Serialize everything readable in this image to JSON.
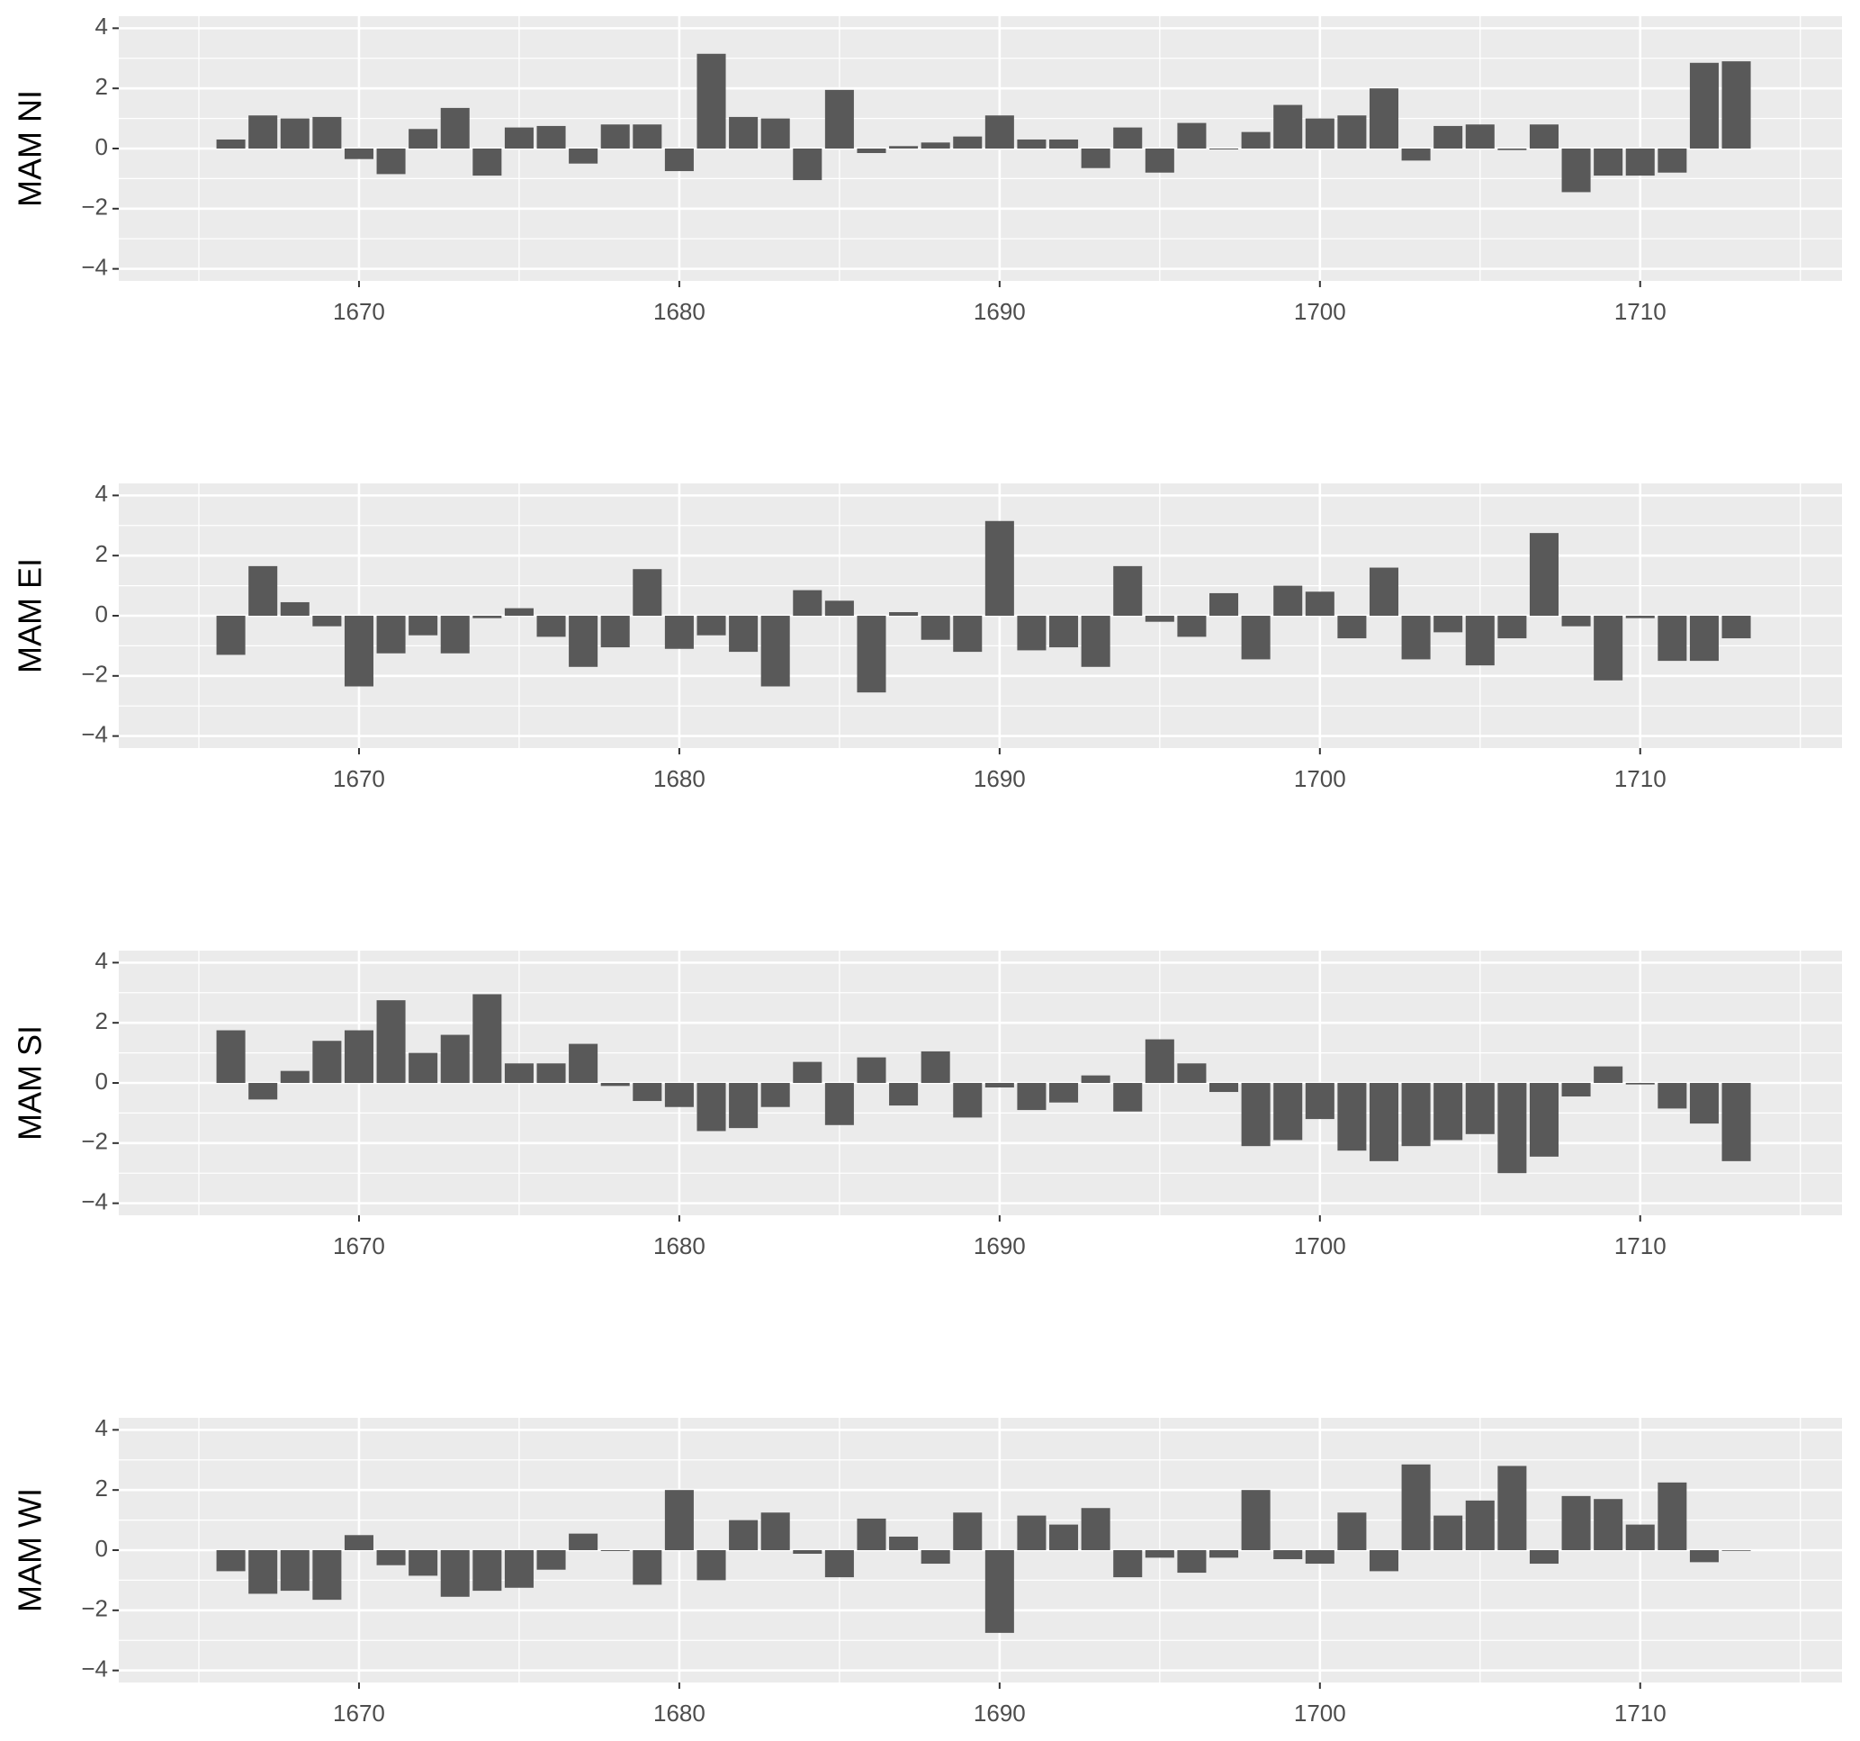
{
  "chart_data": [
    {
      "type": "bar",
      "ylabel": "MAM NI",
      "color": "#595959",
      "grid": true,
      "x": [
        1666,
        1667,
        1668,
        1669,
        1670,
        1671,
        1672,
        1673,
        1674,
        1675,
        1676,
        1677,
        1678,
        1679,
        1680,
        1681,
        1682,
        1683,
        1684,
        1685,
        1686,
        1687,
        1688,
        1689,
        1690,
        1691,
        1692,
        1693,
        1694,
        1695,
        1696,
        1697,
        1698,
        1699,
        1700,
        1701,
        1702,
        1703,
        1704,
        1705,
        1706,
        1707,
        1708,
        1709,
        1710,
        1711,
        1712,
        1713
      ],
      "values": [
        0.3,
        1.1,
        1.0,
        1.05,
        -0.35,
        -0.85,
        0.65,
        1.35,
        -0.9,
        0.7,
        0.75,
        -0.5,
        0.8,
        0.8,
        -0.75,
        3.15,
        1.05,
        1.0,
        -1.05,
        1.95,
        -0.15,
        0.08,
        0.2,
        0.4,
        1.1,
        0.3,
        0.3,
        -0.65,
        0.7,
        -0.8,
        0.85,
        -0.03,
        0.55,
        1.45,
        1.0,
        1.1,
        2.0,
        -0.4,
        0.75,
        0.8,
        -0.05,
        0.8,
        -1.45,
        -0.9,
        -0.9,
        -0.8,
        2.85,
        2.9
      ],
      "xlim": [
        1662.5,
        1716.3
      ],
      "ylim": [
        -4.4,
        4.4
      ],
      "xticks": [
        1670,
        1680,
        1690,
        1700,
        1710
      ],
      "yticks": [
        {
          "value": -4,
          "label": "−4"
        },
        {
          "value": -2,
          "label": "−2"
        },
        0,
        2,
        4
      ]
    },
    {
      "type": "bar",
      "ylabel": "MAM EI",
      "color": "#595959",
      "grid": true,
      "x": [
        1666,
        1667,
        1668,
        1669,
        1670,
        1671,
        1672,
        1673,
        1674,
        1675,
        1676,
        1677,
        1678,
        1679,
        1680,
        1681,
        1682,
        1683,
        1684,
        1685,
        1686,
        1687,
        1688,
        1689,
        1690,
        1691,
        1692,
        1693,
        1694,
        1695,
        1696,
        1697,
        1698,
        1699,
        1700,
        1701,
        1702,
        1703,
        1704,
        1705,
        1706,
        1707,
        1708,
        1709,
        1710,
        1711,
        1712,
        1713
      ],
      "values": [
        -1.3,
        1.65,
        0.45,
        -0.35,
        -2.35,
        -1.25,
        -0.65,
        -1.25,
        -0.08,
        0.25,
        -0.7,
        -1.7,
        -1.05,
        1.55,
        -1.1,
        -0.65,
        -1.2,
        -2.35,
        0.85,
        0.5,
        -2.55,
        0.12,
        -0.8,
        -1.2,
        3.15,
        -1.15,
        -1.05,
        -1.7,
        1.65,
        -0.2,
        -0.7,
        0.75,
        -1.45,
        1.0,
        0.8,
        -0.75,
        1.6,
        -1.45,
        -0.55,
        -1.65,
        -0.75,
        2.75,
        -0.35,
        -2.15,
        -0.08,
        -1.5,
        -1.5,
        -0.75
      ],
      "xlim": [
        1662.5,
        1716.3
      ],
      "ylim": [
        -4.4,
        4.4
      ],
      "xticks": [
        1670,
        1680,
        1690,
        1700,
        1710
      ],
      "yticks": [
        {
          "value": -4,
          "label": "−4"
        },
        {
          "value": -2,
          "label": "−2"
        },
        0,
        2,
        4
      ]
    },
    {
      "type": "bar",
      "ylabel": "MAM SI",
      "color": "#595959",
      "grid": true,
      "x": [
        1666,
        1667,
        1668,
        1669,
        1670,
        1671,
        1672,
        1673,
        1674,
        1675,
        1676,
        1677,
        1678,
        1679,
        1680,
        1681,
        1682,
        1683,
        1684,
        1685,
        1686,
        1687,
        1688,
        1689,
        1690,
        1691,
        1692,
        1693,
        1694,
        1695,
        1696,
        1697,
        1698,
        1699,
        1700,
        1701,
        1702,
        1703,
        1704,
        1705,
        1706,
        1707,
        1708,
        1709,
        1710,
        1711,
        1712,
        1713
      ],
      "values": [
        1.75,
        -0.55,
        0.4,
        1.4,
        1.75,
        2.75,
        1.0,
        1.6,
        2.95,
        0.65,
        0.65,
        1.3,
        -0.1,
        -0.6,
        -0.8,
        -1.6,
        -1.5,
        -0.8,
        0.7,
        -1.4,
        0.85,
        -0.75,
        1.05,
        -1.15,
        -0.15,
        -0.9,
        -0.65,
        0.25,
        -0.95,
        1.45,
        0.65,
        -0.3,
        -2.1,
        -1.9,
        -1.2,
        -2.25,
        -2.6,
        -2.1,
        -1.9,
        -1.7,
        -3.0,
        -2.45,
        -0.45,
        0.55,
        -0.05,
        -0.85,
        -1.35,
        -2.6
      ],
      "xlim": [
        1662.5,
        1716.3
      ],
      "ylim": [
        -4.4,
        4.4
      ],
      "xticks": [
        1670,
        1680,
        1690,
        1700,
        1710
      ],
      "yticks": [
        {
          "value": -4,
          "label": "−4"
        },
        {
          "value": -2,
          "label": "−2"
        },
        0,
        2,
        4
      ]
    },
    {
      "type": "bar",
      "ylabel": "MAM WI",
      "color": "#595959",
      "grid": true,
      "x": [
        1666,
        1667,
        1668,
        1669,
        1670,
        1671,
        1672,
        1673,
        1674,
        1675,
        1676,
        1677,
        1678,
        1679,
        1680,
        1681,
        1682,
        1683,
        1684,
        1685,
        1686,
        1687,
        1688,
        1689,
        1690,
        1691,
        1692,
        1693,
        1694,
        1695,
        1696,
        1697,
        1698,
        1699,
        1700,
        1701,
        1702,
        1703,
        1704,
        1705,
        1706,
        1707,
        1708,
        1709,
        1710,
        1711,
        1712,
        1713
      ],
      "values": [
        -0.7,
        -1.45,
        -1.35,
        -1.65,
        0.5,
        -0.5,
        -0.85,
        -1.55,
        -1.35,
        -1.25,
        -0.65,
        0.55,
        -0.03,
        -1.15,
        2.0,
        -1.0,
        1.0,
        1.25,
        -0.12,
        -0.9,
        1.05,
        0.45,
        -0.45,
        1.25,
        -2.75,
        1.15,
        0.85,
        1.4,
        -0.9,
        -0.25,
        -0.75,
        -0.25,
        2.0,
        -0.3,
        -0.45,
        1.25,
        -0.7,
        2.85,
        1.15,
        1.65,
        2.8,
        -0.45,
        1.8,
        1.7,
        0.85,
        2.25,
        -0.4,
        -0.02
      ],
      "xlim": [
        1662.5,
        1716.3
      ],
      "ylim": [
        -4.4,
        4.4
      ],
      "xticks": [
        1670,
        1680,
        1690,
        1700,
        1710
      ],
      "yticks": [
        {
          "value": -4,
          "label": "−4"
        },
        {
          "value": -2,
          "label": "−2"
        },
        0,
        2,
        4
      ]
    }
  ]
}
